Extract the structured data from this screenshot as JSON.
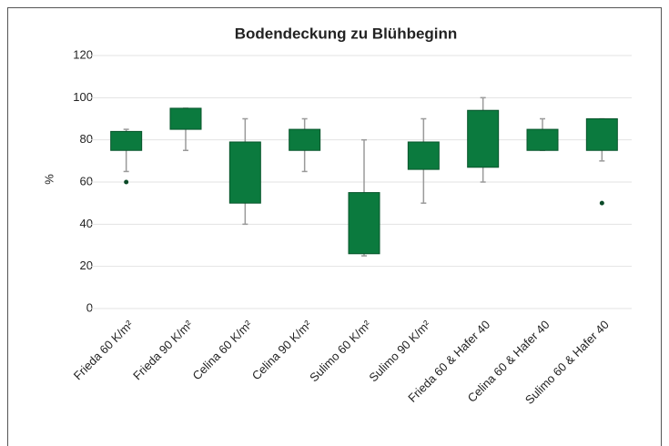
{
  "chart_data": {
    "type": "box",
    "title": "Bodendeckung zu Blühbeginn",
    "y_label": "%",
    "categories": [
      "Frieda 60 K/m²",
      "Frieda 90 K/m²",
      "Celina 60 K/m²",
      "Celina 90 K/m²",
      "Sulimo 60 K/m²",
      "Sulimo 90 K/m²",
      "Frieda 60 & Hafer 40",
      "Celina 60 & Hafer 40",
      "Sulimo 60 & Hafer 40"
    ],
    "boxes": [
      {
        "min": 65,
        "q1": 75,
        "q3": 84,
        "max": 85,
        "outliers": [
          60
        ]
      },
      {
        "min": 75,
        "q1": 85,
        "q3": 95,
        "max": 95,
        "outliers": []
      },
      {
        "min": 40,
        "q1": 50,
        "q3": 79,
        "max": 90,
        "outliers": []
      },
      {
        "min": 65,
        "q1": 75,
        "q3": 85,
        "max": 90,
        "outliers": []
      },
      {
        "min": 25,
        "q1": 26,
        "q3": 55,
        "max": 80,
        "outliers": []
      },
      {
        "min": 50,
        "q1": 66,
        "q3": 79,
        "max": 90,
        "outliers": []
      },
      {
        "min": 60,
        "q1": 67,
        "q3": 94,
        "max": 100,
        "outliers": []
      },
      {
        "min": 75,
        "q1": 75,
        "q3": 85,
        "max": 90,
        "outliers": []
      },
      {
        "min": 70,
        "q1": 75,
        "q3": 90,
        "max": 90,
        "outliers": [
          50
        ]
      }
    ],
    "color": "#0b7a3e",
    "whisker_color": "#9a9a9a",
    "ylim": [
      0,
      120
    ],
    "yticks": [
      0,
      20,
      40,
      60,
      80,
      100,
      120
    ],
    "grid": true
  }
}
